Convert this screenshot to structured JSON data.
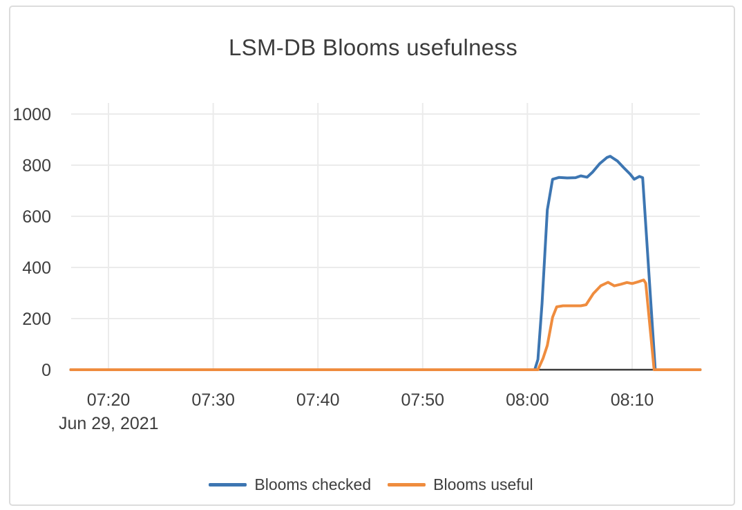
{
  "window": {
    "background_color": "#ffffff",
    "frame_border_color": "#dcdcdc"
  },
  "chart_data": {
    "type": "line",
    "title": "LSM-DB Blooms usefulness",
    "x_axis": {
      "date_label": "Jun 29, 2021",
      "x_unit": "minutes_after_07:00",
      "range": [
        16.4,
        76.5
      ],
      "ticks": [
        {
          "t": 20,
          "label": "07:20"
        },
        {
          "t": 30,
          "label": "07:30"
        },
        {
          "t": 40,
          "label": "07:40"
        },
        {
          "t": 50,
          "label": "07:50"
        },
        {
          "t": 60,
          "label": "08:00"
        },
        {
          "t": 70,
          "label": "08:10"
        }
      ],
      "grid": true
    },
    "y_axis": {
      "range": [
        0,
        1043
      ],
      "ticks": [
        0,
        200,
        400,
        600,
        800,
        1000
      ],
      "grid": true,
      "zero_line": true
    },
    "legend_position": "bottom-center",
    "colors": {
      "grid": "#ebebeb",
      "zero_line": "#3a3a3a",
      "text": "#3e3e3e"
    },
    "series": [
      {
        "name": "Blooms checked",
        "color": "#3d76b2",
        "points": [
          [
            16.4,
            0
          ],
          [
            60.7,
            0
          ],
          [
            61.0,
            40
          ],
          [
            61.4,
            260
          ],
          [
            61.9,
            625
          ],
          [
            62.4,
            745
          ],
          [
            63.0,
            752
          ],
          [
            63.8,
            750
          ],
          [
            64.6,
            751
          ],
          [
            65.1,
            758
          ],
          [
            65.7,
            753
          ],
          [
            66.2,
            772
          ],
          [
            66.9,
            806
          ],
          [
            67.6,
            830
          ],
          [
            67.9,
            835
          ],
          [
            68.6,
            816
          ],
          [
            69.2,
            790
          ],
          [
            69.8,
            765
          ],
          [
            70.2,
            745
          ],
          [
            70.7,
            756
          ],
          [
            71.0,
            751
          ],
          [
            72.2,
            0
          ],
          [
            76.5,
            0
          ]
        ]
      },
      {
        "name": "Blooms useful",
        "color": "#ef8c3e",
        "points": [
          [
            16.4,
            0
          ],
          [
            61.0,
            0
          ],
          [
            61.5,
            45
          ],
          [
            61.9,
            95
          ],
          [
            62.4,
            205
          ],
          [
            62.8,
            246
          ],
          [
            63.4,
            250
          ],
          [
            64.2,
            250
          ],
          [
            65.1,
            250
          ],
          [
            65.6,
            254
          ],
          [
            66.3,
            298
          ],
          [
            67.0,
            328
          ],
          [
            67.7,
            342
          ],
          [
            68.3,
            328
          ],
          [
            68.9,
            334
          ],
          [
            69.5,
            341
          ],
          [
            70.0,
            337
          ],
          [
            70.6,
            344
          ],
          [
            71.1,
            351
          ],
          [
            71.3,
            338
          ],
          [
            72.1,
            0
          ],
          [
            76.5,
            0
          ]
        ]
      }
    ]
  }
}
